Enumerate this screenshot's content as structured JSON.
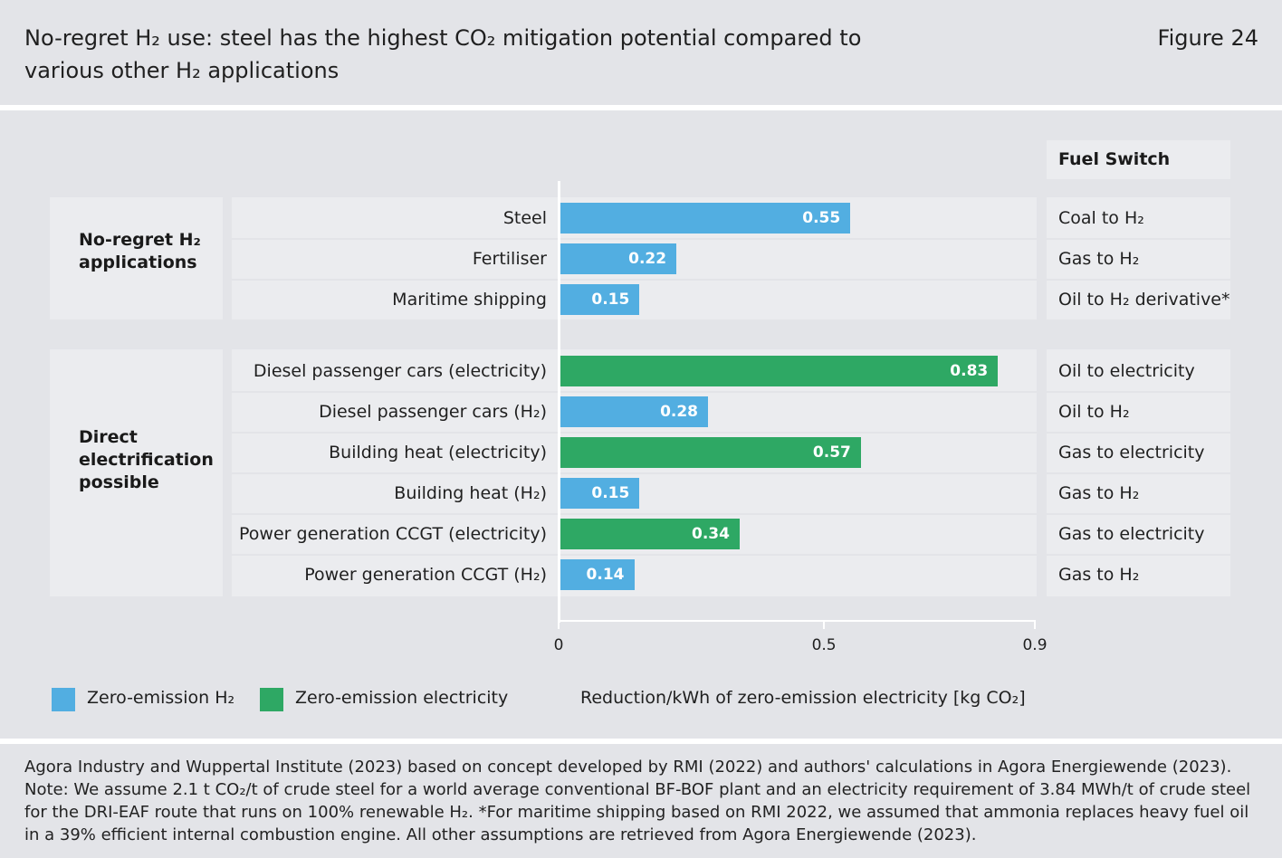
{
  "header": {
    "title": "No-regret H₂ use: steel has the highest CO₂ mitigation potential compared to various other H₂ applications",
    "figure": "Figure 24"
  },
  "fuel_switch_header": "Fuel Switch",
  "groups": [
    {
      "title": "No-regret H₂ applications"
    },
    {
      "title": "Direct electrification possible"
    }
  ],
  "colors": {
    "h2": "#52aee1",
    "electricity": "#2ea864",
    "panel": "#ebecef",
    "band": "#e3e4e8"
  },
  "chart_data": {
    "type": "bar",
    "orientation": "horizontal",
    "title": "No-regret H₂ use: steel has the highest CO₂ mitigation potential compared to various other H₂ applications",
    "xlabel": "Reduction/kWh of zero-emission electricity [kg CO₂]",
    "xlim": [
      0,
      0.9
    ],
    "xticks": [
      0,
      0.5,
      0.9
    ],
    "xtick_labels": [
      "0",
      "0.5",
      "0.9"
    ],
    "legend": [
      {
        "key": "h2",
        "label": "Zero-emission H₂"
      },
      {
        "key": "electricity",
        "label": "Zero-emission electricity"
      }
    ],
    "legend_position": "bottom-left",
    "rows": [
      {
        "category": "Steel",
        "value": 0.55,
        "value_label": "0.55",
        "type": "h2",
        "fuel_switch": "Coal to H₂",
        "group": 0
      },
      {
        "category": "Fertiliser",
        "value": 0.22,
        "value_label": "0.22",
        "type": "h2",
        "fuel_switch": "Gas to H₂",
        "group": 0
      },
      {
        "category": "Maritime shipping",
        "value": 0.15,
        "value_label": "0.15",
        "type": "h2",
        "fuel_switch": "Oil to H₂ derivative*",
        "group": 0
      },
      {
        "category": "Diesel passenger cars (electricity)",
        "value": 0.83,
        "value_label": "0.83",
        "type": "electricity",
        "fuel_switch": "Oil to electricity",
        "group": 1
      },
      {
        "category": "Diesel passenger cars (H₂)",
        "value": 0.28,
        "value_label": "0.28",
        "type": "h2",
        "fuel_switch": "Oil to H₂",
        "group": 1
      },
      {
        "category": "Building heat (electricity)",
        "value": 0.57,
        "value_label": "0.57",
        "type": "electricity",
        "fuel_switch": "Gas to electricity",
        "group": 1
      },
      {
        "category": "Building heat (H₂)",
        "value": 0.15,
        "value_label": "0.15",
        "type": "h2",
        "fuel_switch": "Gas to H₂",
        "group": 1
      },
      {
        "category": "Power generation CCGT (electricity)",
        "value": 0.34,
        "value_label": "0.34",
        "type": "electricity",
        "fuel_switch": "Gas to electricity",
        "group": 1
      },
      {
        "category": "Power generation CCGT (H₂)",
        "value": 0.14,
        "value_label": "0.14",
        "type": "h2",
        "fuel_switch": "Gas to H₂",
        "group": 1
      }
    ]
  },
  "footer": {
    "source": "Agora Industry and Wuppertal Institute (2023) based on concept developed by RMI (2022) and authors' calculations in Agora Energiewende (2023). Note: We assume 2.1 t CO₂/t of crude steel for a world average conventional BF-BOF plant and an electricity requirement of 3.84 MWh/t of crude steel for the DRI-EAF route that runs on 100% renewable H₂. *For maritime shipping based on RMI 2022, we assumed that ammonia replaces heavy fuel oil in a 39% efficient internal combustion engine. All other assumptions are retrieved from Agora Energiewende (2023)."
  }
}
